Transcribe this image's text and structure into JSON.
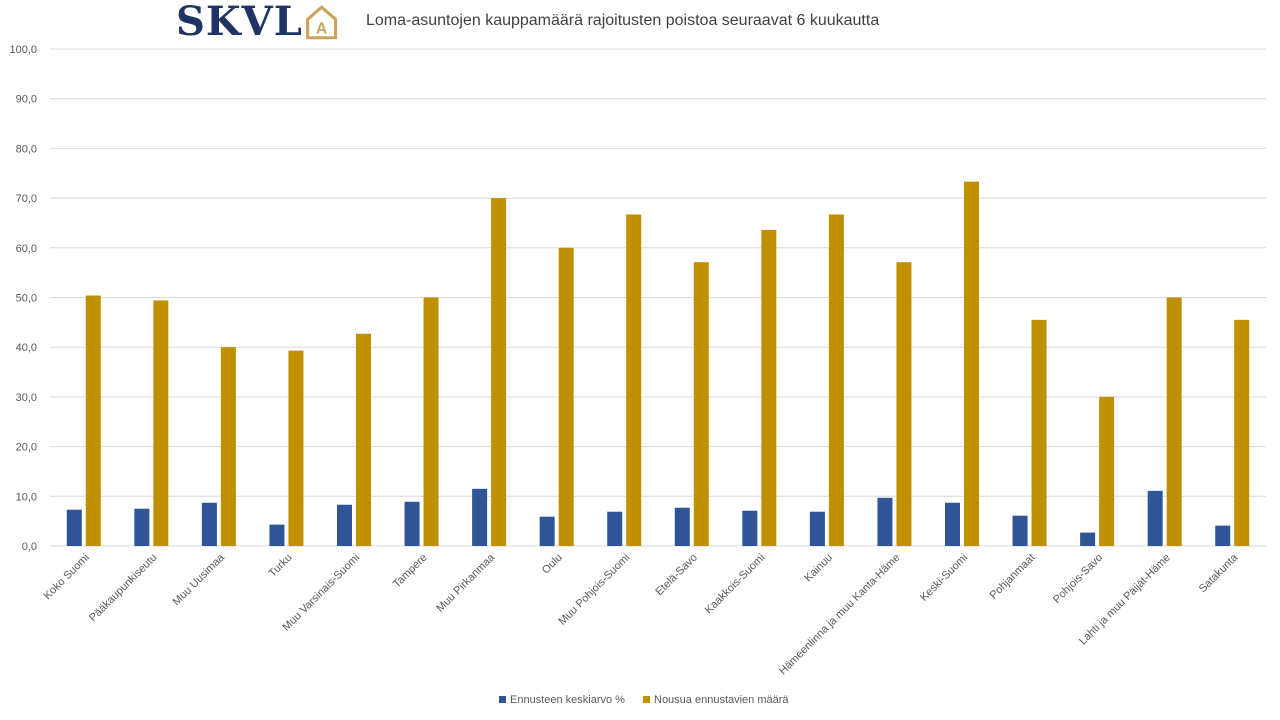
{
  "logo": {
    "text": "SKVL",
    "mark_letter": "A"
  },
  "colors": {
    "series1": "#2f5597",
    "series2": "#bf9000",
    "logo_text": "#1f3364",
    "logo_mark": "#c9a35a",
    "grid": "#d9d9d9",
    "axis_text": "#595959"
  },
  "chart_data": {
    "type": "bar",
    "title": "Loma-asuntojen kauppamäärä rajoitusten poistoa seuraavat 6 kuukautta",
    "xlabel": "",
    "ylabel": "",
    "ylim": [
      0,
      100
    ],
    "yticks": [
      "0,0",
      "10,0",
      "20,0",
      "30,0",
      "40,0",
      "50,0",
      "60,0",
      "70,0",
      "80,0",
      "90,0",
      "100,0"
    ],
    "grid": true,
    "legend_position": "bottom",
    "categories": [
      "Koko Suomi",
      "Pääkaupunkiseutu",
      "Muu Uusimaa",
      "Turku",
      "Muu Varsinais-Suomi",
      "Tampere",
      "Muu Pirkanmaa",
      "Oulu",
      "Muu Pohjois-Suomi",
      "Etelä-Savo",
      "Kaakkois-Suomi",
      "Kainuu",
      "Hämeenlinna ja muu Kanta-Häme",
      "Keski-Suomi",
      "Pohjanmaat",
      "Pohjois-Savo",
      "Lahti ja muu Päijät-Häme",
      "Satakunta"
    ],
    "series": [
      {
        "name": "Ennusteen keskiarvo %",
        "values": [
          7.3,
          7.5,
          8.7,
          4.3,
          8.3,
          8.9,
          11.5,
          5.9,
          6.9,
          7.7,
          7.1,
          6.9,
          9.7,
          8.7,
          6.1,
          2.7,
          11.1,
          4.1
        ]
      },
      {
        "name": "Nousua ennustavien määrä",
        "values": [
          50.4,
          49.4,
          40.0,
          39.3,
          42.7,
          50.0,
          70.0,
          60.0,
          66.7,
          57.1,
          63.6,
          66.7,
          57.1,
          73.3,
          45.5,
          30.0,
          50.0,
          45.5
        ]
      }
    ]
  }
}
